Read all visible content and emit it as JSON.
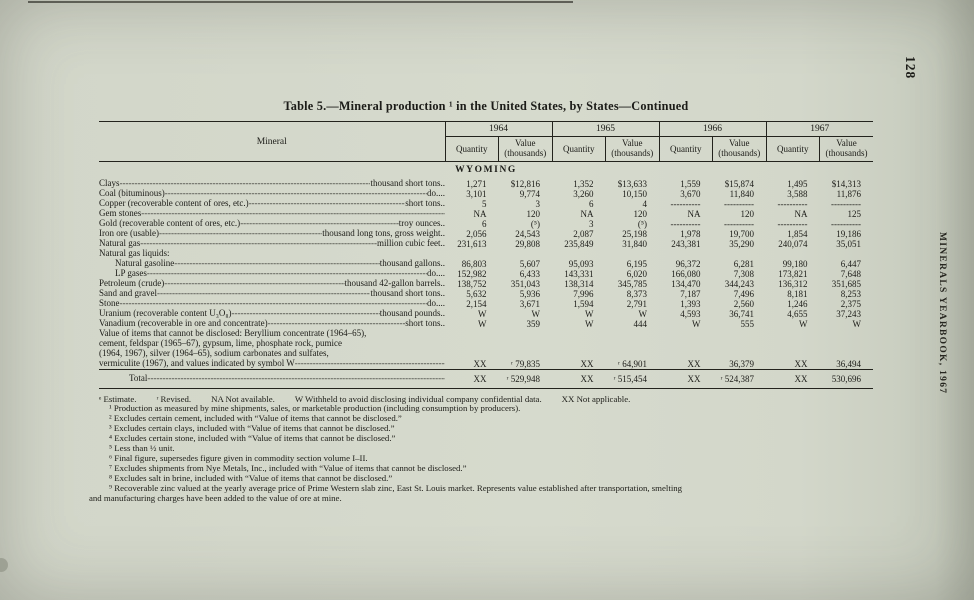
{
  "page": {
    "number": "128",
    "side_text": "MINERALS YEARBOOK, 1967"
  },
  "table": {
    "title": "Table 5.—Mineral production ¹ in the United States, by States—Continued",
    "mineral_col": "Mineral",
    "years": [
      "1964",
      "1965",
      "1966",
      "1967"
    ],
    "sub_quantity": "Quantity",
    "sub_value_line1": "Value",
    "sub_value_line2": "(thousands)",
    "state": "WYOMING",
    "rows": [
      {
        "label": "Clays",
        "unit": "thousand short tons..",
        "cells": [
          "1,271",
          "$12,816",
          "1,352",
          "$13,633",
          "1,559",
          "$15,874",
          "1,495",
          "$14,313"
        ]
      },
      {
        "label": "Coal (bituminous)",
        "unit": "do....",
        "cells": [
          "3,101",
          "9,774",
          "3,260",
          "10,150",
          "3,670",
          "11,840",
          "3,588",
          "11,876"
        ]
      },
      {
        "label": "Copper (recoverable content of ores, etc.)",
        "unit": "short tons..",
        "cells": [
          "5",
          "3",
          "6",
          "4",
          "----------",
          "----------",
          "----------",
          "----------"
        ]
      },
      {
        "label": "Gem stones",
        "unit": "",
        "cells": [
          "NA",
          "120",
          "NA",
          "120",
          "NA",
          "120",
          "NA",
          "125"
        ]
      },
      {
        "label": "Gold (recoverable content of ores, etc.)",
        "unit": "troy ounces..",
        "cells": [
          "6",
          "(⁵)",
          "3",
          "(⁵)",
          "----------",
          "----------",
          "----------",
          "----------"
        ]
      },
      {
        "label": "Iron ore (usable)",
        "unit": "thousand long tons, gross weight..",
        "cells": [
          "2,056",
          "24,543",
          "2,087",
          "25,198",
          "1,978",
          "19,700",
          "1,854",
          "19,186"
        ]
      },
      {
        "label": "Natural gas",
        "unit": "million cubic feet..",
        "cells": [
          "231,613",
          "29,808",
          "235,849",
          "31,840",
          "243,381",
          "35,290",
          "240,074",
          "35,051"
        ]
      },
      {
        "label": "Natural gas liquids:",
        "section": true,
        "cells": [
          "",
          "",
          "",
          "",
          "",
          "",
          "",
          ""
        ]
      },
      {
        "label": "Natural gasoline",
        "indent": true,
        "unit": "thousand gallons..",
        "cells": [
          "86,803",
          "5,607",
          "95,093",
          "6,195",
          "96,372",
          "6,281",
          "99,180",
          "6,447"
        ]
      },
      {
        "label": "LP gases",
        "indent": true,
        "unit": "do....",
        "cells": [
          "152,982",
          "6,433",
          "143,331",
          "6,020",
          "166,080",
          "7,308",
          "173,821",
          "7,648"
        ]
      },
      {
        "label": "Petroleum (crude)",
        "unit": "thousand 42-gallon barrels..",
        "cells": [
          "138,752",
          "351,043",
          "138,314",
          "345,785",
          "134,470",
          "344,243",
          "136,312",
          "351,685"
        ]
      },
      {
        "label": "Sand and gravel",
        "unit": "thousand short tons..",
        "cells": [
          "5,632",
          "5,936",
          "7,996",
          "8,373",
          "7,187",
          "7,496",
          "8,181",
          "8,253"
        ]
      },
      {
        "label": "Stone",
        "unit": "do....",
        "cells": [
          "2,154",
          "3,671",
          "1,594",
          "2,791",
          "1,393",
          "2,560",
          "1,246",
          "2,375"
        ]
      },
      {
        "label": "Uranium (recoverable content U₃O₈)",
        "unit": "thousand pounds..",
        "cells": [
          "W",
          "W",
          "W",
          "W",
          "4,593",
          "36,741",
          "4,655",
          "37,243"
        ]
      },
      {
        "label": "Vanadium (recoverable in ore and concentrate)",
        "unit": "short tons..",
        "cells": [
          "W",
          "359",
          "W",
          "444",
          "W",
          "555",
          "W",
          "W"
        ]
      },
      {
        "label": [
          "Value of items that cannot be disclosed: Beryllium concentrate (1964–65),",
          "cement, feldspar (1965–67), gypsum, lime, phosphate rock, pumice",
          "(1964, 1967), silver (1964–65), sodium carbonates and sulfates,",
          "vermiculite (1967), and values indicated by symbol W"
        ],
        "cells": [
          "XX",
          "ʳ 79,835",
          "XX",
          "ʳ 64,901",
          "XX",
          "36,379",
          "XX",
          "36,494"
        ]
      },
      {
        "label": "Total",
        "total": true,
        "unit": "",
        "cells": [
          "XX",
          "ʳ 529,948",
          "XX",
          "ʳ 515,454",
          "XX",
          "ʳ 524,387",
          "XX",
          "530,696"
        ]
      }
    ]
  },
  "footnotes": {
    "legend": [
      "ᵉ Estimate.",
      "ʳ Revised.",
      "NA Not available.",
      "W Withheld to avoid disclosing individual company confidential data.",
      "XX Not applicable."
    ],
    "notes": [
      "¹ Production as measured by mine shipments, sales, or marketable production (including consumption by producers).",
      "² Excludes certain cement, included with “Value of items that cannot be disclosed.”",
      "³ Excludes certain clays, included with “Value of items that cannot be disclosed.”",
      "⁴ Excludes certain stone, included with “Value of items that cannot be disclosed.”",
      "⁵ Less than ½ unit.",
      "⁶ Final figure, supersedes figure given in commodity section volume I–II.",
      "⁷ Excludes shipments from Nye Metals, Inc., included with “Value of items that cannot be disclosed.”",
      "⁸ Excludes salt in brine, included with “Value of items that cannot be disclosed.”",
      "⁹ Recoverable zinc valued at the yearly average price of Prime Western slab zinc, East St. Louis market. Represents value established after transportation, smelting",
      "and manufacturing charges have been added to the value of ore at mine."
    ]
  }
}
